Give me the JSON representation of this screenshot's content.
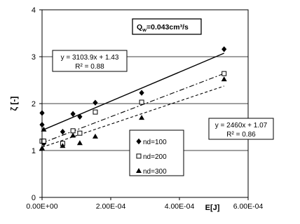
{
  "chart_data": {
    "type": "scatter",
    "title": "",
    "xlabel": "E[J]",
    "ylabel": "ζ [-]",
    "xlim": [
      0,
      0.0006
    ],
    "ylim": [
      0,
      4
    ],
    "x_ticks": [
      "0.00E+00",
      "2.00E-04",
      "4.00E-04",
      "6.00E-04"
    ],
    "y_ticks": [
      "0",
      "1",
      "2",
      "3",
      "4"
    ],
    "grid": "horizontal",
    "legend_position": "lower-right",
    "condition_box": {
      "prefix": "Q",
      "subscript": "w",
      "text": "=0.043cm³/s"
    },
    "series": [
      {
        "name": "nd=100",
        "marker": "diamond",
        "color": "#000000",
        "x": [
          0.0,
          0.0,
          5e-06,
          6e-05,
          9e-05,
          0.00011,
          0.000155,
          0.00029,
          0.00053
        ],
        "y": [
          1.8,
          1.55,
          1.15,
          1.4,
          1.78,
          1.72,
          2.02,
          2.23,
          3.16
        ]
      },
      {
        "name": "nd=200",
        "marker": "square",
        "color": "#000000",
        "x": [
          0.0,
          5e-06,
          6e-05,
          9e-05,
          0.00011,
          0.000155,
          0.00029,
          0.00053
        ],
        "y": [
          1.2,
          1.2,
          1.15,
          1.42,
          1.37,
          1.82,
          2.03,
          2.64
        ]
      },
      {
        "name": "nd=300",
        "marker": "triangle",
        "color": "#000000",
        "x": [
          0.0,
          5e-06,
          6e-05,
          9e-05,
          0.00011,
          0.000155,
          0.00029,
          0.00053
        ],
        "y": [
          1.05,
          1.45,
          1.1,
          1.32,
          1.16,
          1.3,
          1.7,
          2.52
        ]
      }
    ],
    "fits": [
      {
        "series": "nd=100",
        "style": "solid",
        "slope": 3103.9,
        "intercept": 1.43,
        "equation": "y = 3103.9x + 1.43",
        "r2": "R² = 0.88"
      },
      {
        "series": "nd=200",
        "style": "dashdot",
        "slope": 2795,
        "intercept": 1.16,
        "equation": "",
        "r2": ""
      },
      {
        "series": "nd=300",
        "style": "dashed",
        "slope": 2460,
        "intercept": 1.07,
        "equation": "y = 2460x + 1.07",
        "r2": "R² = 0.86"
      }
    ]
  }
}
